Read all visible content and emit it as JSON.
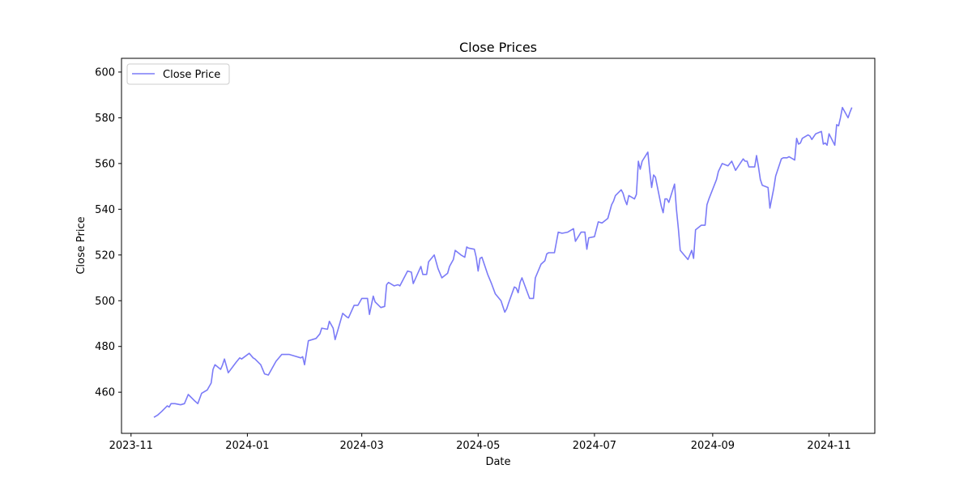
{
  "chart_data": {
    "type": "line",
    "title": "Close Prices",
    "xlabel": "Date",
    "ylabel": "Close Price",
    "xlim": [
      "2023-10-27",
      "2024-11-25"
    ],
    "ylim": [
      442,
      606
    ],
    "yticks": [
      460,
      480,
      500,
      520,
      540,
      560,
      580,
      600
    ],
    "xticks": [
      {
        "date": "2023-11-01",
        "label": "2023-11"
      },
      {
        "date": "2024-01-01",
        "label": "2024-01"
      },
      {
        "date": "2024-03-01",
        "label": "2024-03"
      },
      {
        "date": "2024-05-01",
        "label": "2024-05"
      },
      {
        "date": "2024-07-01",
        "label": "2024-07"
      },
      {
        "date": "2024-09-01",
        "label": "2024-09"
      },
      {
        "date": "2024-11-01",
        "label": "2024-11"
      }
    ],
    "grid": false,
    "legend_position": "top-left",
    "series": [
      {
        "name": "Close Price",
        "color": "#7b7bf7",
        "x": [
          "2023-11-13",
          "2023-11-15",
          "2023-11-17",
          "2023-11-20",
          "2023-11-21",
          "2023-11-22",
          "2023-11-24",
          "2023-11-27",
          "2023-11-29",
          "2023-12-01",
          "2023-12-04",
          "2023-12-06",
          "2023-12-08",
          "2023-12-11",
          "2023-12-13",
          "2023-12-14",
          "2023-12-15",
          "2023-12-18",
          "2023-12-19",
          "2023-12-20",
          "2023-12-22",
          "2023-12-26",
          "2023-12-28",
          "2023-12-29",
          "2024-01-02",
          "2024-01-04",
          "2024-01-05",
          "2024-01-08",
          "2024-01-10",
          "2024-01-12",
          "2024-01-16",
          "2024-01-17",
          "2024-01-19",
          "2024-01-23",
          "2024-01-25",
          "2024-01-29",
          "2024-01-30",
          "2024-01-31",
          "2024-02-02",
          "2024-02-06",
          "2024-02-08",
          "2024-02-09",
          "2024-02-12",
          "2024-02-13",
          "2024-02-15",
          "2024-02-16",
          "2024-02-20",
          "2024-02-22",
          "2024-02-23",
          "2024-02-26",
          "2024-02-28",
          "2024-03-01",
          "2024-03-04",
          "2024-03-05",
          "2024-03-07",
          "2024-03-08",
          "2024-03-11",
          "2024-03-13",
          "2024-03-14",
          "2024-03-15",
          "2024-03-18",
          "2024-03-20",
          "2024-03-21",
          "2024-03-25",
          "2024-03-27",
          "2024-03-28",
          "2024-04-01",
          "2024-04-02",
          "2024-04-04",
          "2024-04-05",
          "2024-04-08",
          "2024-04-10",
          "2024-04-11",
          "2024-04-12",
          "2024-04-15",
          "2024-04-16",
          "2024-04-18",
          "2024-04-19",
          "2024-04-22",
          "2024-04-24",
          "2024-04-25",
          "2024-04-26",
          "2024-04-29",
          "2024-04-30",
          "2024-05-01",
          "2024-05-02",
          "2024-05-03",
          "2024-05-06",
          "2024-05-08",
          "2024-05-10",
          "2024-05-13",
          "2024-05-15",
          "2024-05-16",
          "2024-05-17",
          "2024-05-20",
          "2024-05-21",
          "2024-05-22",
          "2024-05-23",
          "2024-05-24",
          "2024-05-28",
          "2024-05-30",
          "2024-05-31",
          "2024-06-03",
          "2024-06-05",
          "2024-06-06",
          "2024-06-07",
          "2024-06-10",
          "2024-06-12",
          "2024-06-14",
          "2024-06-17",
          "2024-06-20",
          "2024-06-21",
          "2024-06-24",
          "2024-06-26",
          "2024-06-27",
          "2024-06-28",
          "2024-07-01",
          "2024-07-03",
          "2024-07-05",
          "2024-07-08",
          "2024-07-10",
          "2024-07-11",
          "2024-07-12",
          "2024-07-15",
          "2024-07-16",
          "2024-07-17",
          "2024-07-18",
          "2024-07-19",
          "2024-07-22",
          "2024-07-23",
          "2024-07-24",
          "2024-07-25",
          "2024-07-26",
          "2024-07-29",
          "2024-07-30",
          "2024-07-31",
          "2024-08-01",
          "2024-08-02",
          "2024-08-05",
          "2024-08-06",
          "2024-08-07",
          "2024-08-08",
          "2024-08-09",
          "2024-08-12",
          "2024-08-13",
          "2024-08-14",
          "2024-08-15",
          "2024-08-19",
          "2024-08-21",
          "2024-08-22",
          "2024-08-23",
          "2024-08-26",
          "2024-08-28",
          "2024-08-29",
          "2024-08-30",
          "2024-09-03",
          "2024-09-04",
          "2024-09-06",
          "2024-09-09",
          "2024-09-11",
          "2024-09-13",
          "2024-09-17",
          "2024-09-18",
          "2024-09-19",
          "2024-09-20",
          "2024-09-23",
          "2024-09-24",
          "2024-09-25",
          "2024-09-26",
          "2024-09-27",
          "2024-09-30",
          "2024-10-01",
          "2024-10-03",
          "2024-10-04",
          "2024-10-07",
          "2024-10-08",
          "2024-10-10",
          "2024-10-11",
          "2024-10-14",
          "2024-10-15",
          "2024-10-16",
          "2024-10-17",
          "2024-10-18",
          "2024-10-21",
          "2024-10-22",
          "2024-10-23",
          "2024-10-25",
          "2024-10-28",
          "2024-10-29",
          "2024-10-30",
          "2024-10-31",
          "2024-11-01",
          "2024-11-04",
          "2024-11-05",
          "2024-11-06",
          "2024-11-07",
          "2024-11-08",
          "2024-11-11",
          "2024-11-12",
          "2024-11-13"
        ],
        "y": [
          449,
          450,
          451.5,
          454,
          453.5,
          455,
          455,
          454.5,
          455,
          459,
          456.5,
          455,
          459.5,
          461,
          464,
          470,
          472,
          470,
          472,
          474.5,
          468.5,
          473,
          475,
          474.5,
          477,
          475,
          474.5,
          472,
          468,
          467.5,
          473.5,
          474.5,
          476.5,
          476.5,
          476,
          475,
          475.5,
          472,
          482.5,
          483.5,
          485.5,
          488,
          487.5,
          491,
          488,
          483,
          494.5,
          493,
          492.5,
          498,
          498,
          501,
          501,
          494,
          502,
          499.5,
          497,
          497.5,
          507,
          508,
          506.5,
          507,
          506.5,
          513,
          512.5,
          507.5,
          515,
          511.5,
          511.5,
          517,
          520,
          514,
          512,
          510,
          512,
          515,
          518,
          522,
          520,
          519,
          523.5,
          523,
          522.5,
          519,
          513,
          518.5,
          519,
          511.5,
          507.5,
          503,
          500,
          495,
          496.5,
          499,
          506,
          505.5,
          503.5,
          508,
          510,
          501,
          501,
          510,
          516,
          517.5,
          520.5,
          521,
          521,
          530,
          529.5,
          530,
          531.5,
          526,
          530,
          530,
          522.5,
          527.5,
          528,
          534.5,
          534,
          536,
          542,
          543.5,
          546,
          548.5,
          547,
          544,
          542,
          546,
          544.5,
          546.5,
          561,
          557.5,
          561,
          565,
          556.5,
          549.5,
          555,
          554,
          541.5,
          538.5,
          544.5,
          544.5,
          543,
          551,
          540,
          531.5,
          522,
          518,
          522,
          518.5,
          531,
          533,
          533,
          542,
          544.5,
          553,
          556.5,
          560,
          559,
          561,
          557,
          562,
          561,
          561,
          558.5,
          558.5,
          563.5,
          558.5,
          553,
          550.5,
          549.5,
          540.5,
          549,
          554.5,
          562,
          562.5,
          562.5,
          563,
          561.5,
          571,
          568.5,
          569,
          571,
          572.5,
          572,
          570.5,
          573,
          574,
          568.5,
          569,
          568,
          573,
          568,
          577,
          576.5,
          580,
          584.5,
          580,
          582.5,
          584.5
        ]
      }
    ]
  }
}
